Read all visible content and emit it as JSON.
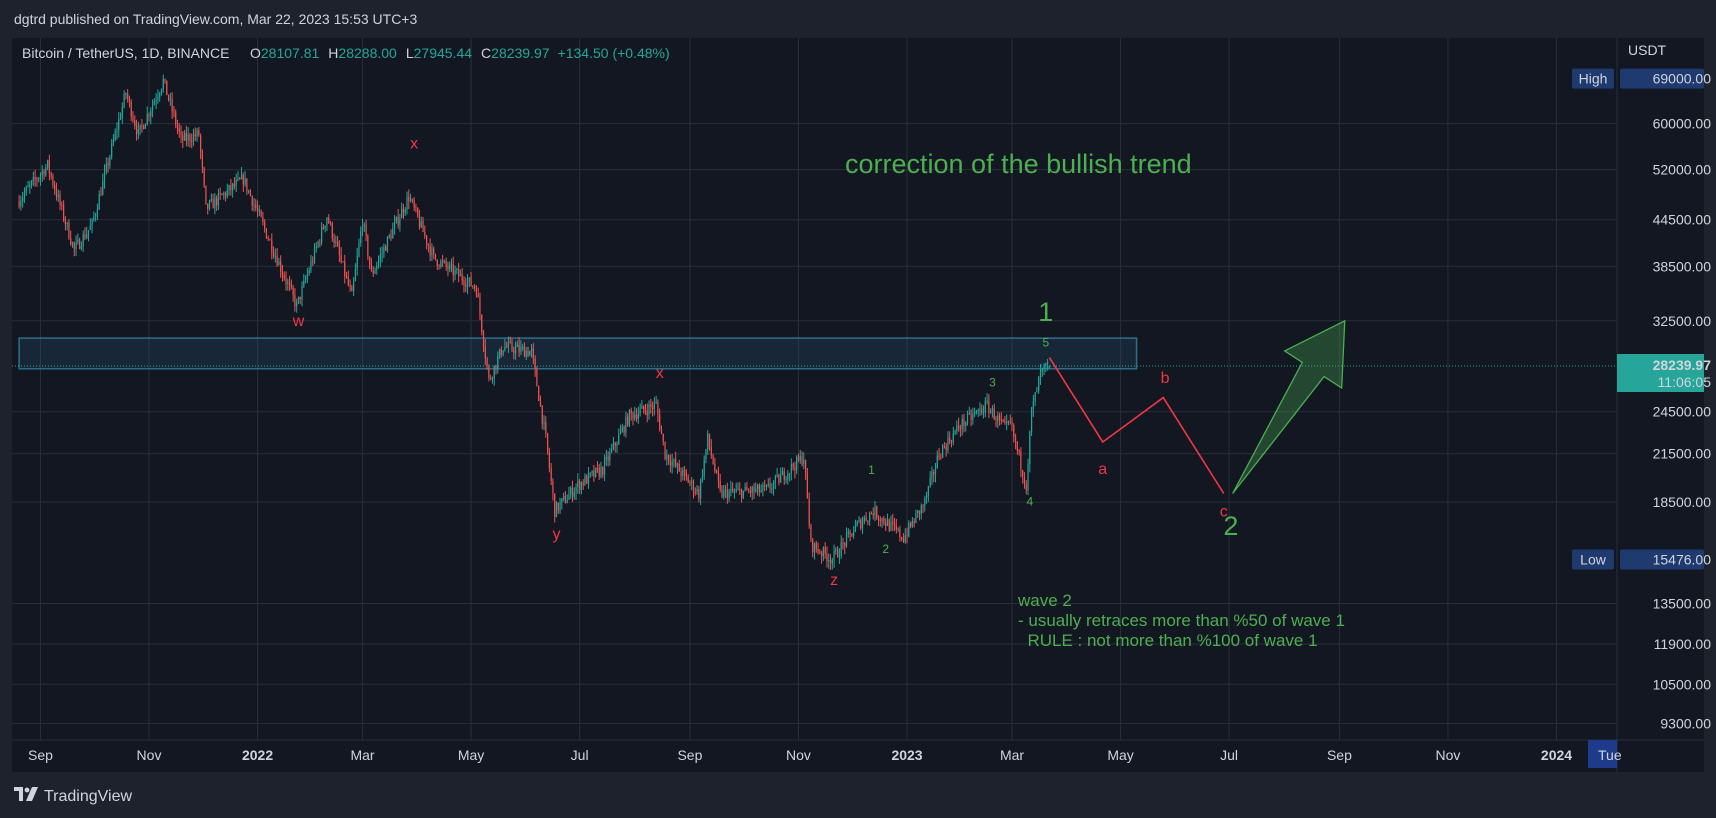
{
  "publish_line": "dgtrd published on TradingView.com, Mar 22, 2023 15:53 UTC+3",
  "brand": "TradingView",
  "colors": {
    "background": "#131722",
    "frame": "#1e222d",
    "grid": "#2a2e39",
    "up": "#26a69a",
    "down": "#ef5350",
    "annotation_green": "#4caf50",
    "annotation_red": "#f23645",
    "zone": "#2f6f8a",
    "badge_blue": "#1e3a6e",
    "price_badge": "#26a69a"
  },
  "chart_data": {
    "type": "candlestick",
    "symbol_line": "Bitcoin / TetherUS, 1D, BINANCE",
    "ohlc": {
      "open_label": "O",
      "open": "28107.81",
      "high_label": "H",
      "high": "28288.00",
      "low_label": "L",
      "low": "27945.44",
      "close_label": "C",
      "close": "28239.97",
      "change": "+134.50 (+0.48%)"
    },
    "y_axis": {
      "unit": "USDT",
      "scale": "log",
      "ticks": [
        {
          "value": 60000,
          "label": "60000.00"
        },
        {
          "value": 52000,
          "label": "52000.00"
        },
        {
          "value": 44500,
          "label": "44500.00"
        },
        {
          "value": 38500,
          "label": "38500.00"
        },
        {
          "value": 32500,
          "label": "32500.00"
        },
        {
          "value": 24500,
          "label": "24500.00"
        },
        {
          "value": 21500,
          "label": "21500.00"
        },
        {
          "value": 18500,
          "label": "18500.00"
        },
        {
          "value": 13500,
          "label": "13500.00"
        },
        {
          "value": 11900,
          "label": "11900.00"
        },
        {
          "value": 10500,
          "label": "10500.00"
        },
        {
          "value": 9300,
          "label": "9300.00"
        }
      ],
      "high_badge": {
        "label": "High",
        "value": 69000,
        "text": "69000.00"
      },
      "low_badge": {
        "label": "Low",
        "value": 15476,
        "text": "15476.00"
      },
      "last_price": {
        "value": 28239.97,
        "text": "28239.97",
        "countdown": "11:06:05"
      }
    },
    "x_axis": {
      "ticks": [
        {
          "label": "Sep",
          "date": "2021-09-01",
          "bold": false
        },
        {
          "label": "Nov",
          "date": "2021-11-01",
          "bold": false
        },
        {
          "label": "2022",
          "date": "2022-01-01",
          "bold": true
        },
        {
          "label": "Mar",
          "date": "2022-03-01",
          "bold": false
        },
        {
          "label": "May",
          "date": "2022-05-01",
          "bold": false
        },
        {
          "label": "Jul",
          "date": "2022-07-01",
          "bold": false
        },
        {
          "label": "Sep",
          "date": "2022-09-01",
          "bold": false
        },
        {
          "label": "Nov",
          "date": "2022-11-01",
          "bold": false
        },
        {
          "label": "2023",
          "date": "2023-01-01",
          "bold": true
        },
        {
          "label": "Mar",
          "date": "2023-03-01",
          "bold": false
        },
        {
          "label": "May",
          "date": "2023-05-01",
          "bold": false
        },
        {
          "label": "Jul",
          "date": "2023-07-01",
          "bold": false
        },
        {
          "label": "Sep",
          "date": "2023-09-01",
          "bold": false
        },
        {
          "label": "Nov",
          "date": "2023-11-01",
          "bold": false
        },
        {
          "label": "2024",
          "date": "2024-01-01",
          "bold": true
        }
      ],
      "crosshair_label": "Tue"
    },
    "price_path": [
      [
        "2021-08-20",
        47000
      ],
      [
        "2021-09-06",
        52700
      ],
      [
        "2021-09-21",
        40500
      ],
      [
        "2021-10-01",
        43800
      ],
      [
        "2021-10-20",
        66000
      ],
      [
        "2021-10-27",
        58000
      ],
      [
        "2021-11-10",
        68500
      ],
      [
        "2021-11-20",
        57000
      ],
      [
        "2021-11-30",
        58000
      ],
      [
        "2021-12-04",
        46000
      ],
      [
        "2021-12-25",
        50500
      ],
      [
        "2022-01-10",
        41000
      ],
      [
        "2022-01-24",
        34000
      ],
      [
        "2022-02-10",
        45000
      ],
      [
        "2022-02-24",
        35000
      ],
      [
        "2022-03-02",
        44500
      ],
      [
        "2022-03-07",
        37500
      ],
      [
        "2022-03-28",
        47800
      ],
      [
        "2022-04-11",
        39500
      ],
      [
        "2022-05-05",
        36000
      ],
      [
        "2022-05-12",
        27000
      ],
      [
        "2022-05-20",
        30000
      ],
      [
        "2022-06-05",
        29500
      ],
      [
        "2022-06-13",
        22500
      ],
      [
        "2022-06-18",
        18000
      ],
      [
        "2022-07-01",
        19500
      ],
      [
        "2022-07-15",
        20500
      ],
      [
        "2022-07-30",
        24200
      ],
      [
        "2022-08-14",
        25000
      ],
      [
        "2022-08-19",
        21500
      ],
      [
        "2022-09-07",
        19000
      ],
      [
        "2022-09-12",
        22500
      ],
      [
        "2022-09-19",
        19000
      ],
      [
        "2022-10-15",
        19200
      ],
      [
        "2022-11-05",
        21300
      ],
      [
        "2022-11-09",
        16200
      ],
      [
        "2022-11-21",
        15476
      ],
      [
        "2022-12-05",
        17200
      ],
      [
        "2022-12-14",
        18000
      ],
      [
        "2022-12-31",
        16550
      ],
      [
        "2023-01-12",
        18500
      ],
      [
        "2023-01-20",
        21500
      ],
      [
        "2023-02-01",
        23500
      ],
      [
        "2023-02-16",
        25000
      ],
      [
        "2023-02-26",
        23200
      ],
      [
        "2023-03-01",
        23600
      ],
      [
        "2023-03-10",
        19500
      ],
      [
        "2023-03-13",
        24500
      ],
      [
        "2023-03-18",
        27500
      ],
      [
        "2023-03-22",
        28240
      ]
    ],
    "zone": {
      "from": "2021-08-20",
      "to": "2023-05-10",
      "low": 28000,
      "high": 30800
    },
    "wave_labels": [
      {
        "text": "x",
        "date": "2022-03-30",
        "price": 55500,
        "color": "red",
        "size": "small"
      },
      {
        "text": "w",
        "date": "2022-01-24",
        "price": 32000,
        "color": "red",
        "size": "small"
      },
      {
        "text": "x",
        "date": "2022-08-15",
        "price": 27200,
        "color": "red",
        "size": "small"
      },
      {
        "text": "y",
        "date": "2022-06-18",
        "price": 16500,
        "color": "red",
        "size": "small"
      },
      {
        "text": "z",
        "date": "2022-11-21",
        "price": 14300,
        "color": "red",
        "size": "small"
      },
      {
        "text": "1",
        "date": "2022-12-12",
        "price": 20200,
        "color": "green",
        "size": "tiny"
      },
      {
        "text": "2",
        "date": "2022-12-20",
        "price": 15800,
        "color": "green",
        "size": "tiny"
      },
      {
        "text": "3",
        "date": "2023-02-18",
        "price": 26500,
        "color": "green",
        "size": "tiny"
      },
      {
        "text": "4",
        "date": "2023-03-11",
        "price": 18300,
        "color": "green",
        "size": "tiny"
      },
      {
        "text": "5",
        "date": "2023-03-20",
        "price": 30000,
        "color": "green",
        "size": "tiny"
      },
      {
        "text": "1",
        "date": "2023-03-20",
        "price": 32500,
        "color": "green",
        "size": "big"
      },
      {
        "text": "a",
        "date": "2023-04-21",
        "price": 20200,
        "color": "red",
        "size": "small"
      },
      {
        "text": "b",
        "date": "2023-05-26",
        "price": 26800,
        "color": "red",
        "size": "small"
      },
      {
        "text": "c",
        "date": "2023-06-28",
        "price": 17700,
        "color": "red",
        "size": "small"
      },
      {
        "text": "2",
        "date": "2023-07-02",
        "price": 16700,
        "color": "green",
        "size": "big"
      }
    ],
    "projection": [
      [
        "2023-03-22",
        29000
      ],
      [
        "2023-04-21",
        22300
      ],
      [
        "2023-05-25",
        25600
      ],
      [
        "2023-06-28",
        19000
      ]
    ],
    "arrow": {
      "from": [
        "2023-07-03",
        19000
      ],
      "to": [
        "2023-09-04",
        32500
      ]
    },
    "title_annotation": "correction of the bullish trend",
    "note": [
      "wave 2",
      "- usually retraces more than %50 of wave 1",
      "  RULE : not more than %100 of wave 1"
    ]
  }
}
